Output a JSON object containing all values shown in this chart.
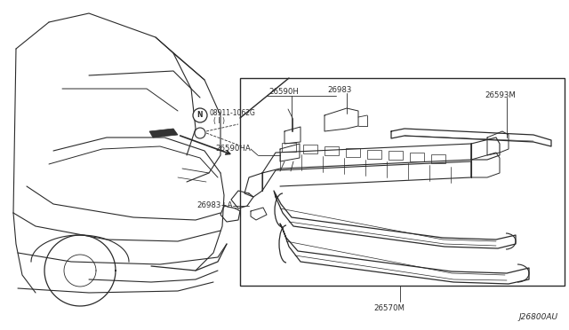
{
  "bg_color": "#ffffff",
  "line_color": "#2a2a2a",
  "text_color": "#2a2a2a",
  "fig_width": 6.4,
  "fig_height": 3.72,
  "dpi": 100,
  "diagram_id": "J26800AU",
  "label_08911": "08911-1062G",
  "label_i": "( I )",
  "label_26590H": "26590H",
  "label_26983": "26983",
  "label_26590HA": "26590HA",
  "label_26983A": "26983+A",
  "label_26593M": "26593M",
  "label_26570M": "26570M"
}
